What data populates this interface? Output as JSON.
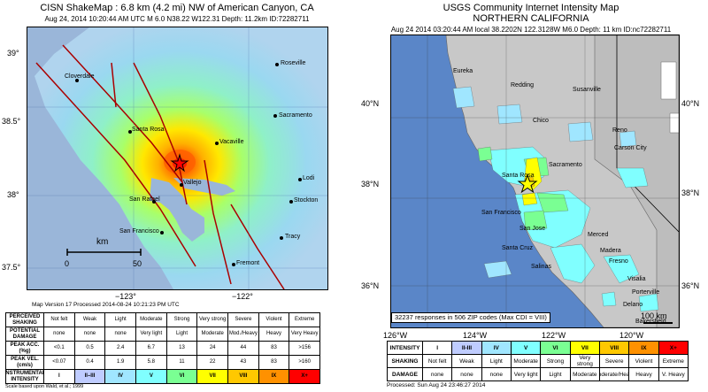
{
  "shakemap": {
    "title": "CISN ShakeMap : 6.8 km (4.2 mi) NW of American Canyon, CA",
    "subtitle": "Aug 24, 2014 10:20:44 AM UTC   M 6.0   N38.22 W122.31   Depth: 11.2km   ID:72282711",
    "lat_ticks": [
      "39°",
      "38.5°",
      "38°",
      "37.5°"
    ],
    "lon_ticks": [
      "−123°",
      "−122°"
    ],
    "cities": [
      "Cloverdale",
      "Roseville",
      "Sacramento",
      "Santa Rosa",
      "Vacaville",
      "Vallejo",
      "Lodi",
      "San Rafael",
      "Stockton",
      "San Francisco",
      "Tracy",
      "Fremont"
    ],
    "scale_unit": "km",
    "scale_ticks": [
      "0",
      "50"
    ],
    "version_note": "Map Version 17 Processed 2014-08-24 10:21:23 PM UTC",
    "legend": {
      "row_headers": [
        "PERCEIVED SHAKING",
        "POTENTIAL DAMAGE",
        "PEAK ACC.(%g)",
        "PEAK VEL.(cm/s)",
        "INSTRUMENTAL INTENSITY"
      ],
      "shaking": [
        "Not felt",
        "Weak",
        "Light",
        "Moderate",
        "Strong",
        "Very strong",
        "Severe",
        "Violent",
        "Extreme"
      ],
      "damage": [
        "none",
        "none",
        "none",
        "Very light",
        "Light",
        "Moderate",
        "Mod./Heavy",
        "Heavy",
        "Very Heavy"
      ],
      "acc": [
        "<0.1",
        "0.5",
        "2.4",
        "6.7",
        "13",
        "24",
        "44",
        "83",
        ">156"
      ],
      "vel": [
        "<0.07",
        "0.4",
        "1.9",
        "5.8",
        "11",
        "22",
        "43",
        "83",
        ">160"
      ],
      "intensity": [
        "I",
        "II–III",
        "IV",
        "V",
        "VI",
        "VII",
        "VIII",
        "IX",
        "X+"
      ],
      "colors": [
        "#ffffff",
        "#bfccff",
        "#a0e6ff",
        "#80ffff",
        "#7aff93",
        "#ffff00",
        "#ffc800",
        "#ff9100",
        "#ff0000"
      ],
      "footnote": "Scale based upon Wald, et al.; 1999"
    }
  },
  "dyfi": {
    "title_line1": "USGS Community Internet Intensity Map",
    "title_line2": "NORTHERN CALIFORNIA",
    "subtitle": "Aug 24 2014 03:20:44 AM local 38.2202N 122.3128W M6.0 Depth: 11 km ID:nc72282711",
    "lat_ticks_left": [
      "40°N",
      "38°N",
      "36°N"
    ],
    "lat_ticks_right": [
      "40°N",
      "38°N",
      "36°N"
    ],
    "lon_ticks": [
      "126°W",
      "124°W",
      "122°W",
      "120°W"
    ],
    "cities": [
      "Eureka",
      "Redding",
      "Susanville",
      "Chico",
      "Reno",
      "Carson City",
      "Sacramento",
      "Santa Rosa",
      "San Francisco",
      "San Jose",
      "Santa Cruz",
      "Merced",
      "Madera",
      "Fresno",
      "Salinas",
      "Visalia",
      "Porterville",
      "Delano",
      "Bakersfield"
    ],
    "responses_note": "32237 responses in 506 ZIP codes (Max CDI = VIII)",
    "scale_label": "100 km",
    "legend": {
      "row_headers": [
        "INTENSITY",
        "SHAKING",
        "DAMAGE"
      ],
      "intensity": [
        "I",
        "II-III",
        "IV",
        "V",
        "VI",
        "VII",
        "VIII",
        "IX",
        "X+"
      ],
      "shaking": [
        "Not felt",
        "Weak",
        "Light",
        "Moderate",
        "Strong",
        "Very strong",
        "Severe",
        "Violent",
        "Extreme"
      ],
      "damage": [
        "none",
        "none",
        "none",
        "Very light",
        "Light",
        "Moderate",
        "Moderate/Heavy",
        "Heavy",
        "V. Heavy"
      ],
      "colors": [
        "#ffffff",
        "#bfccff",
        "#a0e6ff",
        "#80ffff",
        "#7aff93",
        "#ffff00",
        "#ffc800",
        "#ff9100",
        "#ff0000"
      ]
    },
    "processed_note": "Processed: Sun Aug 24 23:46:27 2014"
  },
  "colors": {
    "ocean_left": "#9ab6d9",
    "ocean_right": "#5a86c8",
    "land_right": "#c8c8c8",
    "epicenter": "#ff0000"
  }
}
